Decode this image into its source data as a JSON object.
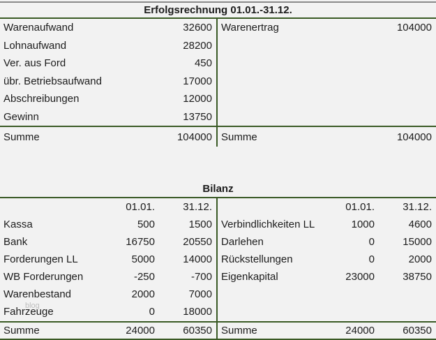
{
  "income_statement": {
    "title": "Erfolgsrechnung 01.01.-31.12.",
    "left": {
      "rows": [
        {
          "label": "Warenaufwand",
          "value": "32600"
        },
        {
          "label": "Lohnaufwand",
          "value": "28200"
        },
        {
          "label": "Ver. aus Ford",
          "value": "450"
        },
        {
          "label": "übr. Betriebsaufwand",
          "value": "17000"
        },
        {
          "label": "Abschreibungen",
          "value": "12000"
        },
        {
          "label": "Gewinn",
          "value": "13750"
        }
      ],
      "total": {
        "label": "Summe",
        "value": "104000"
      }
    },
    "right": {
      "rows": [
        {
          "label": "Warenertrag",
          "value": "104000"
        }
      ],
      "total": {
        "label": "Summe",
        "value": "104000"
      }
    }
  },
  "balance_sheet": {
    "title": "Bilanz",
    "column_headers": [
      "01.01.",
      "31.12."
    ],
    "left": {
      "rows": [
        {
          "label": "Kassa",
          "v1": "500",
          "v2": "1500"
        },
        {
          "label": "Bank",
          "v1": "16750",
          "v2": "20550"
        },
        {
          "label": "Forderungen LL",
          "v1": "5000",
          "v2": "14000"
        },
        {
          "label": "WB Forderungen",
          "v1": "-250",
          "v2": "-700"
        },
        {
          "label": "Warenbestand",
          "v1": "2000",
          "v2": "7000"
        },
        {
          "label": "Fahrzeuge",
          "v1": "0",
          "v2": "18000"
        }
      ],
      "total": {
        "label": "Summe",
        "v1": "24000",
        "v2": "60350"
      }
    },
    "right": {
      "rows": [
        {
          "label": "Verbindlichkeiten LL",
          "v1": "1000",
          "v2": "4600"
        },
        {
          "label": "Darlehen",
          "v1": "0",
          "v2": "15000"
        },
        {
          "label": "Rückstellungen",
          "v1": "0",
          "v2": "2000"
        },
        {
          "label": "Eigenkapital",
          "v1": "23000",
          "v2": "38750"
        }
      ],
      "total": {
        "label": "Summe",
        "v1": "24000",
        "v2": "60350"
      }
    }
  },
  "watermark": "blog",
  "colors": {
    "rule_green": "#3a5a25",
    "top_rule_gray": "#8a8a8a",
    "background": "#f2f2f2",
    "text": "#1c1c1c",
    "watermark_gray": "#b2b2b2"
  }
}
